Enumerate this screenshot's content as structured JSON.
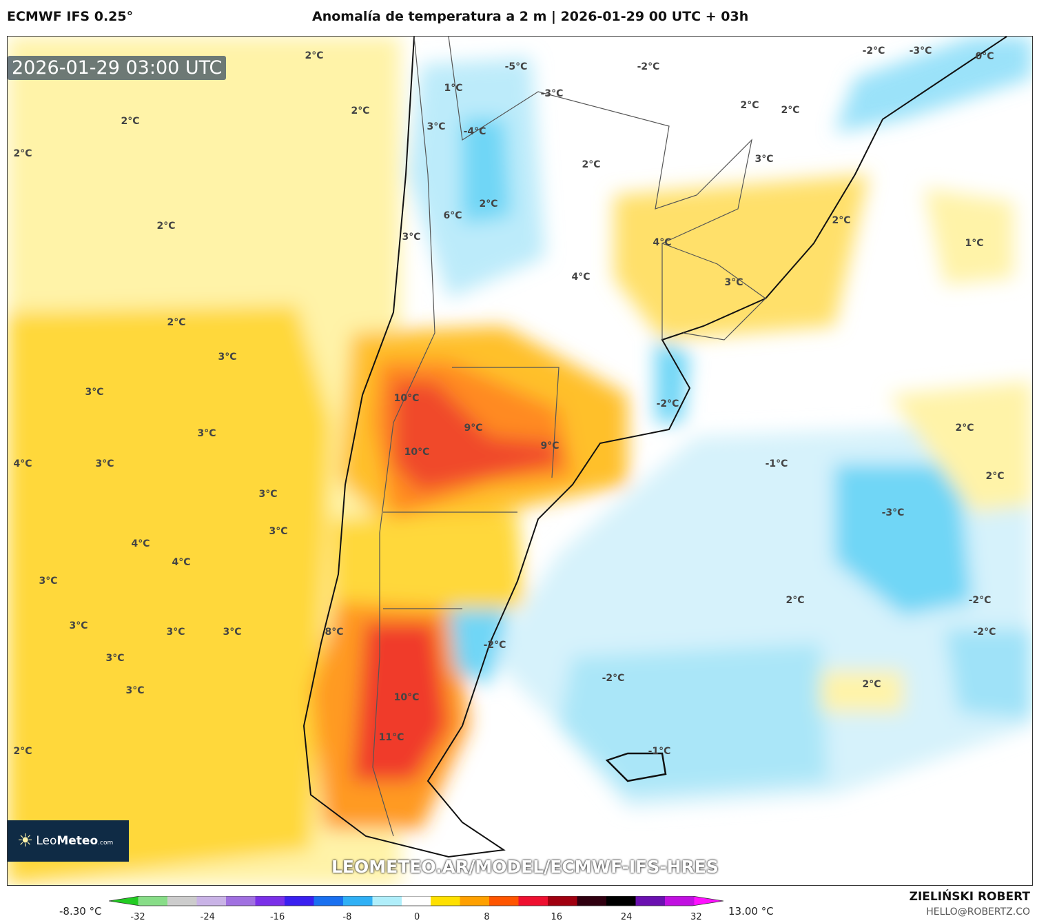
{
  "header": {
    "model": "ECMWF IFS 0.25°",
    "title": "Anomalía de temperatura a 2 m | 2026-01-29 00 UTC + 03h"
  },
  "map": {
    "timestamp": "2026-01-29 03:00 UTC",
    "logo": {
      "name": "Leo",
      "bold": "Meteo",
      "suffix": ".com"
    },
    "url": "LEOMETEO.AR/MODEL/ECMWF-IFS-HRES",
    "labels": [
      "2°C",
      "2°C",
      "2°C",
      "2°C",
      "2°C",
      "2°C",
      "3°C",
      "3°C",
      "3°C",
      "4°C",
      "3°C",
      "3°C",
      "3°C",
      "4°C",
      "4°C",
      "3°C",
      "3°C",
      "3°C",
      "3°C",
      "3°C",
      "3°C",
      "2°C",
      "1°C",
      "-5°C",
      "-3°C",
      "-2°C",
      "3°C",
      "-4°C",
      "2°C",
      "6°C",
      "3°C",
      "2°C",
      "4°C",
      "4°C",
      "3°C",
      "2°C",
      "2°C",
      "3°C",
      "2°C",
      "1°C",
      "-2°C",
      "-3°C",
      "0°C",
      "10°C",
      "9°C",
      "10°C",
      "9°C",
      "-2°C",
      "-1°C",
      "2°C",
      "2°C",
      "-3°C",
      "2°C",
      "-2°C",
      "-2°C",
      "2°C",
      "-2°C",
      "-2°C",
      "10°C",
      "11°C",
      "-1°C",
      "8°C"
    ]
  },
  "colorbar": {
    "min_label": "-8.30 °C",
    "max_label": "13.00 °C",
    "ticks": [
      "-32",
      "-24",
      "-16",
      "-8",
      "0",
      "8",
      "16",
      "24",
      "32"
    ],
    "colors": [
      "#22cc22",
      "#88dd88",
      "#cccccc",
      "#c9b3e6",
      "#a070e0",
      "#7a30e8",
      "#3a20f0",
      "#1a70f0",
      "#30b0f5",
      "#b0eefa",
      "#ffffff",
      "#ffe000",
      "#ffa000",
      "#ff5500",
      "#ee1030",
      "#a00010",
      "#300010",
      "#000000",
      "#6a10b0",
      "#c010e0",
      "#ff10ff"
    ]
  },
  "footer": {
    "author": "ZIELIŃSKI ROBERT",
    "email": "HELLO@ROBERTZ.CO"
  },
  "colors": {
    "yellow_light": "#fff3a8",
    "yellow": "#ffd83a",
    "orange": "#ff9a20",
    "red": "#f03a2a",
    "blue_light": "#d6f2fb",
    "blue": "#6fd6f6"
  }
}
